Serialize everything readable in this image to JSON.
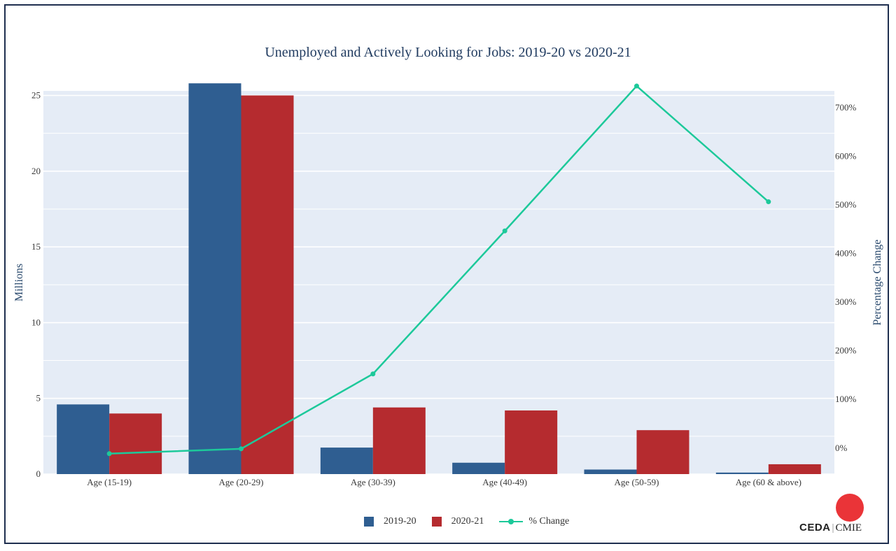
{
  "chart_data": {
    "type": "bar",
    "title": "Unemployed and Actively Looking for Jobs: 2019-20 vs 2020-21",
    "categories": [
      "Age (15-19)",
      "Age (20-29)",
      "Age (30-39)",
      "Age (40-49)",
      "Age (50-59)",
      "Age (60 & above)"
    ],
    "series": [
      {
        "name": "2019-20",
        "type": "bar",
        "axis": "left",
        "color": "#2f5e91",
        "values": [
          4.6,
          25.8,
          1.75,
          0.75,
          0.3,
          0.1
        ]
      },
      {
        "name": "2020-21",
        "type": "bar",
        "axis": "left",
        "color": "#b52b2f",
        "values": [
          4.0,
          25.0,
          4.4,
          4.2,
          2.9,
          0.65
        ]
      },
      {
        "name": "% Change",
        "type": "line",
        "axis": "right",
        "color": "#1dc99a",
        "values": [
          -13,
          -3,
          151,
          445,
          743,
          505
        ]
      }
    ],
    "ylabel": "Millions",
    "y2label": "Percentage Change",
    "ylim": [
      0,
      25.3
    ],
    "y2lim": [
      -55,
      733
    ],
    "yticks": [
      0,
      5,
      10,
      15,
      20,
      25
    ],
    "y2ticks": [
      0,
      100,
      200,
      300,
      400,
      500,
      600,
      700
    ],
    "y2tick_suffix": "%",
    "grid": true,
    "legend_position": "bottom-center"
  },
  "legend": {
    "items": [
      "2019-20",
      "2020-21",
      "% Change"
    ]
  },
  "logo": {
    "ceda": "CEDA",
    "sep": "|",
    "cmie": "CMIE"
  }
}
